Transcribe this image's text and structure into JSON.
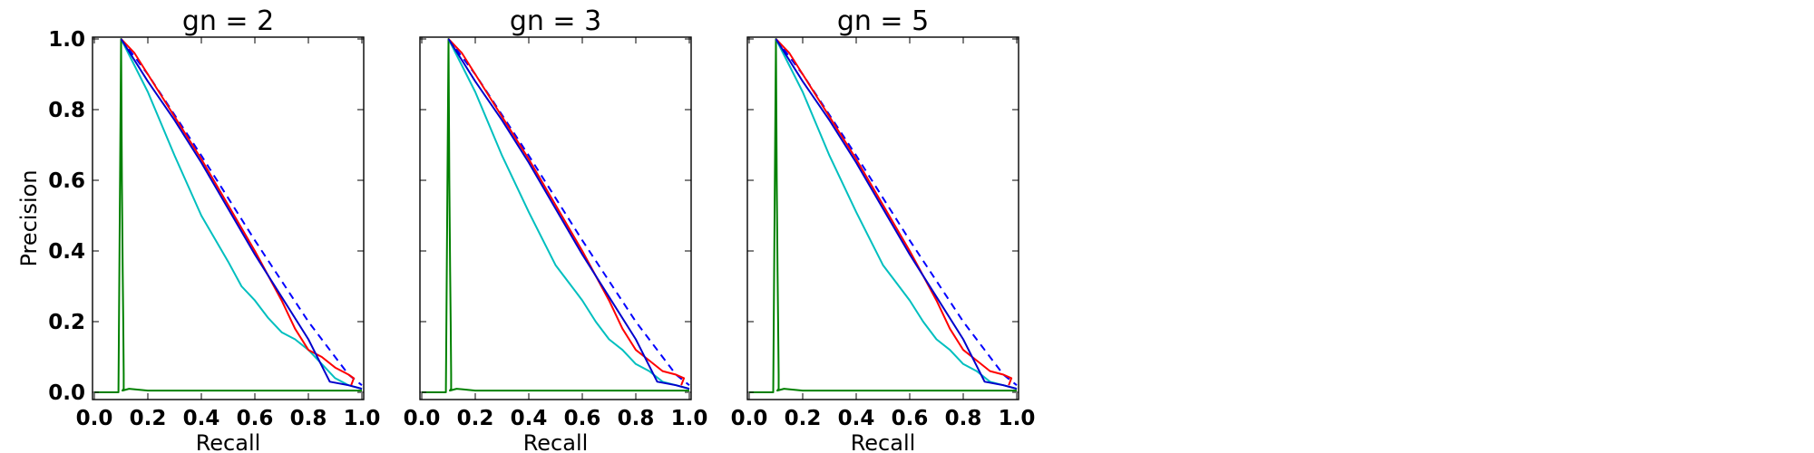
{
  "chart_data": [
    {
      "type": "line",
      "title": "gn = 2",
      "xlabel": "Recall",
      "ylabel": "Precision",
      "xlim": [
        0.0,
        1.0
      ],
      "ylim": [
        0.0,
        1.0
      ],
      "xticks": [
        "0.0",
        "0.2",
        "0.4",
        "0.6",
        "0.8",
        "1.0"
      ],
      "yticks": [
        "0.0",
        "0.2",
        "0.4",
        "0.6",
        "0.8",
        "1.0"
      ],
      "grid": false,
      "series": [
        {
          "color": "#008000",
          "style": "solid",
          "x": [
            0.0,
            0.09,
            0.1,
            0.103,
            0.106,
            0.108,
            0.11,
            0.11,
            0.105,
            0.13,
            0.2,
            0.6,
            1.0
          ],
          "y": [
            0.0,
            0.0,
            1.0,
            0.6,
            0.34,
            0.2,
            0.05,
            0.01,
            0.005,
            0.01,
            0.005,
            0.005,
            0.005
          ]
        },
        {
          "color": "#00bfbf",
          "style": "solid",
          "x": [
            0.1,
            0.2,
            0.3,
            0.4,
            0.5,
            0.55,
            0.6,
            0.65,
            0.7,
            0.75,
            0.8,
            0.85,
            0.9,
            0.95,
            1.0
          ],
          "y": [
            1.0,
            0.85,
            0.67,
            0.5,
            0.37,
            0.3,
            0.26,
            0.21,
            0.17,
            0.15,
            0.12,
            0.08,
            0.04,
            0.02,
            0.01
          ]
        },
        {
          "color": "#0000ff",
          "style": "dashed",
          "x": [
            0.1,
            0.2,
            0.4,
            0.6,
            0.8,
            0.9,
            0.95,
            1.0
          ],
          "y": [
            1.0,
            0.9,
            0.67,
            0.43,
            0.2,
            0.1,
            0.05,
            0.02
          ]
        },
        {
          "color": "#ff0000",
          "style": "solid",
          "x": [
            0.1,
            0.15,
            0.2,
            0.3,
            0.4,
            0.5,
            0.6,
            0.7,
            0.75,
            0.8,
            0.85,
            0.9,
            0.95,
            0.97,
            0.96
          ],
          "y": [
            1.0,
            0.96,
            0.9,
            0.78,
            0.66,
            0.53,
            0.4,
            0.26,
            0.18,
            0.12,
            0.1,
            0.07,
            0.05,
            0.04,
            0.02
          ]
        },
        {
          "color": "#0000cc",
          "style": "solid",
          "x": [
            0.1,
            0.2,
            0.3,
            0.4,
            0.5,
            0.6,
            0.7,
            0.8,
            0.88,
            0.95,
            1.0
          ],
          "y": [
            1.0,
            0.88,
            0.77,
            0.65,
            0.52,
            0.39,
            0.27,
            0.15,
            0.03,
            0.02,
            0.01
          ]
        }
      ]
    },
    {
      "type": "line",
      "title": "gn = 3",
      "xlabel": "Recall",
      "ylabel": "",
      "xlim": [
        0.0,
        1.0
      ],
      "ylim": [
        0.0,
        1.0
      ],
      "xticks": [
        "0.0",
        "0.2",
        "0.4",
        "0.6",
        "0.8",
        "1.0"
      ],
      "yticks": [],
      "grid": false,
      "series": [
        {
          "color": "#008000",
          "style": "solid",
          "x": [
            0.0,
            0.09,
            0.1,
            0.103,
            0.106,
            0.108,
            0.11,
            0.11,
            0.105,
            0.13,
            0.2,
            0.6,
            1.0
          ],
          "y": [
            0.0,
            0.0,
            1.0,
            0.6,
            0.34,
            0.2,
            0.05,
            0.01,
            0.005,
            0.01,
            0.005,
            0.005,
            0.005
          ]
        },
        {
          "color": "#00bfbf",
          "style": "solid",
          "x": [
            0.1,
            0.2,
            0.3,
            0.4,
            0.5,
            0.55,
            0.6,
            0.65,
            0.7,
            0.75,
            0.8,
            0.85,
            0.9,
            0.95,
            1.0
          ],
          "y": [
            1.0,
            0.85,
            0.67,
            0.51,
            0.36,
            0.31,
            0.26,
            0.2,
            0.15,
            0.12,
            0.08,
            0.06,
            0.03,
            0.02,
            0.01
          ]
        },
        {
          "color": "#0000ff",
          "style": "dashed",
          "x": [
            0.1,
            0.2,
            0.4,
            0.6,
            0.8,
            0.9,
            0.95,
            1.0
          ],
          "y": [
            1.0,
            0.9,
            0.67,
            0.43,
            0.2,
            0.1,
            0.05,
            0.02
          ]
        },
        {
          "color": "#ff0000",
          "style": "solid",
          "x": [
            0.1,
            0.15,
            0.2,
            0.3,
            0.4,
            0.5,
            0.6,
            0.7,
            0.75,
            0.8,
            0.85,
            0.9,
            0.95,
            0.98,
            0.97
          ],
          "y": [
            1.0,
            0.96,
            0.9,
            0.78,
            0.66,
            0.53,
            0.4,
            0.26,
            0.18,
            0.12,
            0.09,
            0.06,
            0.05,
            0.04,
            0.02
          ]
        },
        {
          "color": "#0000cc",
          "style": "solid",
          "x": [
            0.1,
            0.2,
            0.3,
            0.4,
            0.5,
            0.6,
            0.7,
            0.8,
            0.88,
            0.95,
            1.0
          ],
          "y": [
            1.0,
            0.88,
            0.77,
            0.65,
            0.52,
            0.39,
            0.27,
            0.15,
            0.03,
            0.02,
            0.01
          ]
        }
      ]
    },
    {
      "type": "line",
      "title": "gn = 5",
      "xlabel": "Recall",
      "ylabel": "",
      "xlim": [
        0.0,
        1.0
      ],
      "ylim": [
        0.0,
        1.0
      ],
      "xticks": [
        "0.0",
        "0.2",
        "0.4",
        "0.6",
        "0.8",
        "1.0"
      ],
      "yticks": [],
      "grid": false,
      "series": [
        {
          "color": "#008000",
          "style": "solid",
          "x": [
            0.0,
            0.09,
            0.1,
            0.103,
            0.106,
            0.108,
            0.11,
            0.11,
            0.105,
            0.13,
            0.2,
            0.6,
            1.0
          ],
          "y": [
            0.0,
            0.0,
            1.0,
            0.6,
            0.34,
            0.2,
            0.05,
            0.01,
            0.005,
            0.01,
            0.005,
            0.005,
            0.005
          ]
        },
        {
          "color": "#00bfbf",
          "style": "solid",
          "x": [
            0.1,
            0.2,
            0.3,
            0.4,
            0.5,
            0.55,
            0.6,
            0.65,
            0.7,
            0.75,
            0.8,
            0.85,
            0.9,
            0.95,
            1.0
          ],
          "y": [
            1.0,
            0.85,
            0.67,
            0.51,
            0.36,
            0.31,
            0.26,
            0.2,
            0.15,
            0.12,
            0.08,
            0.06,
            0.03,
            0.02,
            0.01
          ]
        },
        {
          "color": "#0000ff",
          "style": "dashed",
          "x": [
            0.1,
            0.2,
            0.4,
            0.6,
            0.8,
            0.9,
            0.95,
            1.0
          ],
          "y": [
            1.0,
            0.9,
            0.67,
            0.43,
            0.2,
            0.1,
            0.05,
            0.02
          ]
        },
        {
          "color": "#ff0000",
          "style": "solid",
          "x": [
            0.1,
            0.15,
            0.2,
            0.3,
            0.4,
            0.5,
            0.6,
            0.7,
            0.75,
            0.8,
            0.85,
            0.9,
            0.95,
            0.98,
            0.97
          ],
          "y": [
            1.0,
            0.96,
            0.9,
            0.78,
            0.66,
            0.53,
            0.4,
            0.26,
            0.18,
            0.12,
            0.09,
            0.06,
            0.05,
            0.04,
            0.02
          ]
        },
        {
          "color": "#0000cc",
          "style": "solid",
          "x": [
            0.1,
            0.2,
            0.3,
            0.4,
            0.5,
            0.6,
            0.7,
            0.8,
            0.88,
            0.95,
            1.0
          ],
          "y": [
            1.0,
            0.88,
            0.77,
            0.65,
            0.52,
            0.39,
            0.27,
            0.15,
            0.03,
            0.02,
            0.01
          ]
        }
      ]
    }
  ]
}
